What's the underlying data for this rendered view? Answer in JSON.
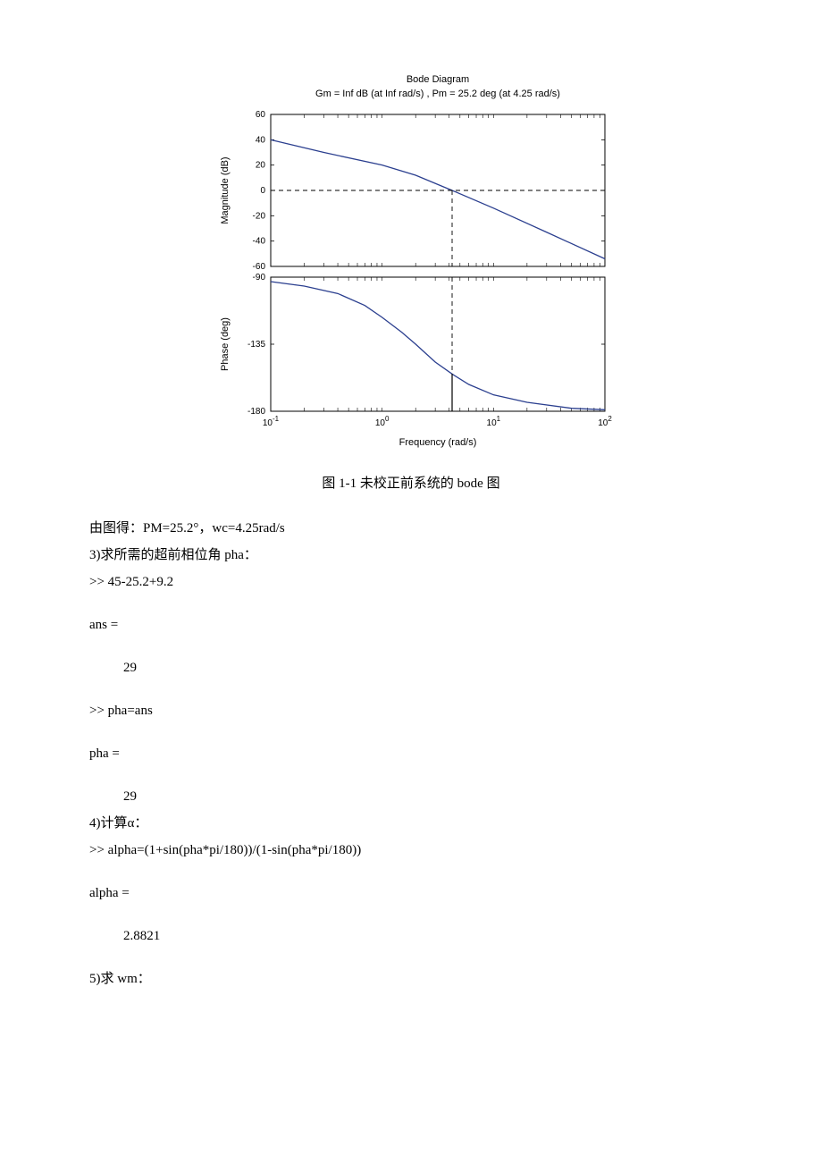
{
  "chart": {
    "title": "Bode Diagram",
    "subtitle": "Gm = Inf dB (at Inf rad/s) ,  Pm = 25.2 deg (at 4.25 rad/s)",
    "xlabel": "Frequency  (rad/s)",
    "mag": {
      "ylabel": "Magnitude (dB)",
      "ylim": [
        -60,
        60
      ],
      "yticks": [
        -60,
        -40,
        -20,
        0,
        20,
        40,
        60
      ],
      "series": [
        {
          "x": 0.1,
          "y": 40
        },
        {
          "x": 0.3,
          "y": 30
        },
        {
          "x": 1.0,
          "y": 20
        },
        {
          "x": 2.0,
          "y": 12
        },
        {
          "x": 4.25,
          "y": 0
        },
        {
          "x": 10,
          "y": -14
        },
        {
          "x": 30,
          "y": -33
        },
        {
          "x": 100,
          "y": -54
        }
      ],
      "crossover_x": 4.25,
      "crossover_y": 0
    },
    "phase": {
      "ylabel": "Phase (deg)",
      "ylim": [
        -180,
        -90
      ],
      "yticks": [
        -180,
        -135,
        -90
      ],
      "series": [
        {
          "x": 0.1,
          "y": -93
        },
        {
          "x": 0.2,
          "y": -96
        },
        {
          "x": 0.4,
          "y": -101
        },
        {
          "x": 0.7,
          "y": -109
        },
        {
          "x": 1.0,
          "y": -117
        },
        {
          "x": 1.5,
          "y": -127
        },
        {
          "x": 2.0,
          "y": -135
        },
        {
          "x": 3.0,
          "y": -147
        },
        {
          "x": 4.25,
          "y": -155
        },
        {
          "x": 6.0,
          "y": -162
        },
        {
          "x": 10,
          "y": -169
        },
        {
          "x": 20,
          "y": -174
        },
        {
          "x": 50,
          "y": -178
        },
        {
          "x": 100,
          "y": -179
        }
      ],
      "crossover_x": 4.25,
      "crossover_y": -155
    },
    "xlim": [
      0.1,
      100
    ],
    "xticks": [
      0.1,
      1,
      10,
      100
    ],
    "xtick_labels_base": "10",
    "xtick_exponents": [
      "-1",
      "0",
      "1",
      "2"
    ],
    "colors": {
      "line": "#2b3f8f",
      "axis": "#000000",
      "grid": "#000000",
      "background": "#ffffff",
      "text": "#000000"
    },
    "line_width": 1.3,
    "title_fontsize": 11,
    "subtitle_fontsize": 11,
    "label_fontsize": 11,
    "tick_fontsize": 10
  },
  "caption": "图 1-1  未校正前系统的 bode 图",
  "lines": {
    "l1": "由图得：PM=25.2°，wc=4.25rad/s",
    "l2": "3)求所需的超前相位角 pha：",
    "l3": ">> 45-25.2+9.2",
    "l4": "ans =",
    "l5": "29",
    "l6": ">> pha=ans",
    "l7": "pha =",
    "l8": "29",
    "l9": "4)计算α：",
    "l10": ">>   alpha=(1+sin(pha*pi/180))/(1-sin(pha*pi/180))",
    "l11": "alpha =",
    "l12": "2.8821",
    "l13": "5)求 wm："
  }
}
